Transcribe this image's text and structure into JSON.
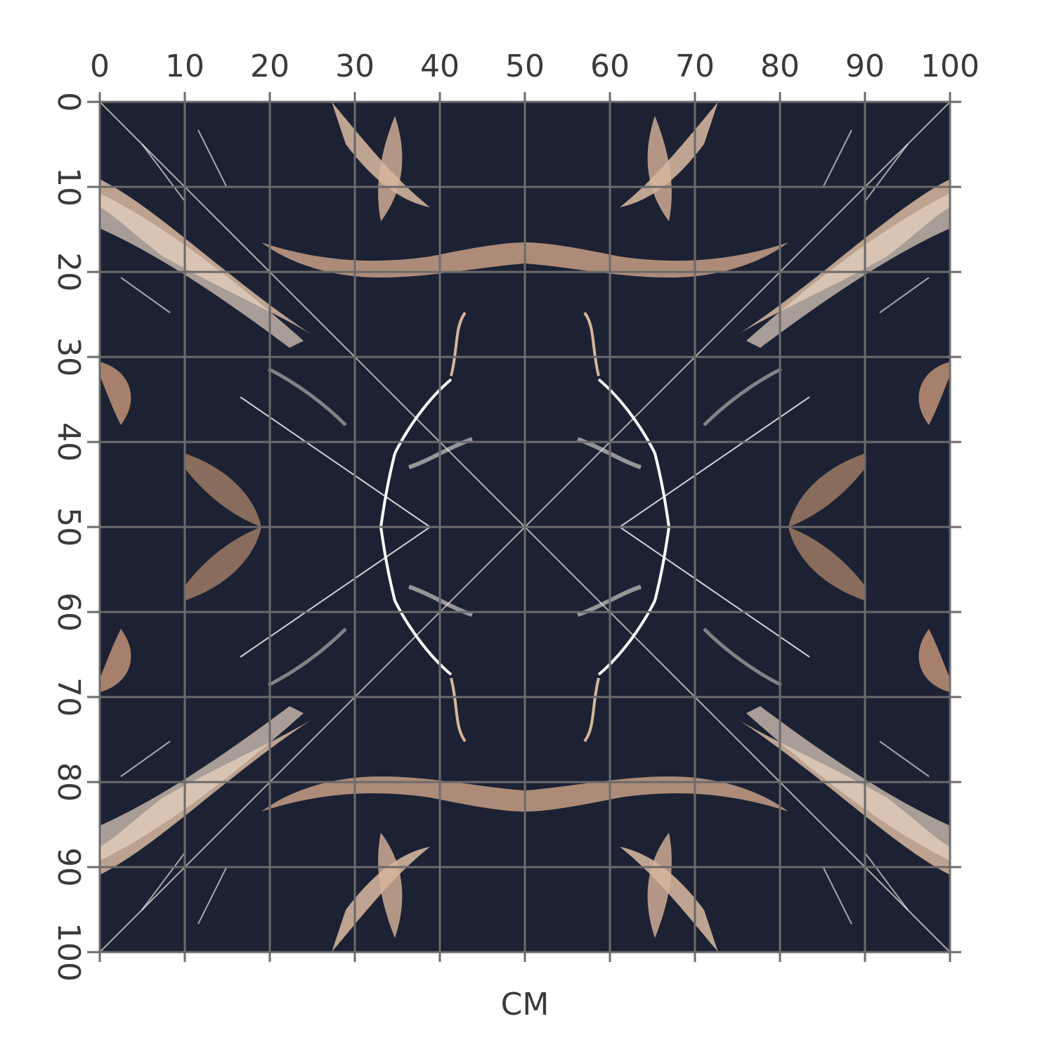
{
  "grid": {
    "xlim": [
      0,
      100
    ],
    "ylim": [
      0,
      100
    ],
    "xticks": [
      0,
      10,
      20,
      30,
      40,
      50,
      60,
      70,
      80,
      90,
      100
    ],
    "yticks": [
      0,
      10,
      20,
      30,
      40,
      50,
      60,
      70,
      80,
      90,
      100
    ],
    "label": "CM"
  }
}
